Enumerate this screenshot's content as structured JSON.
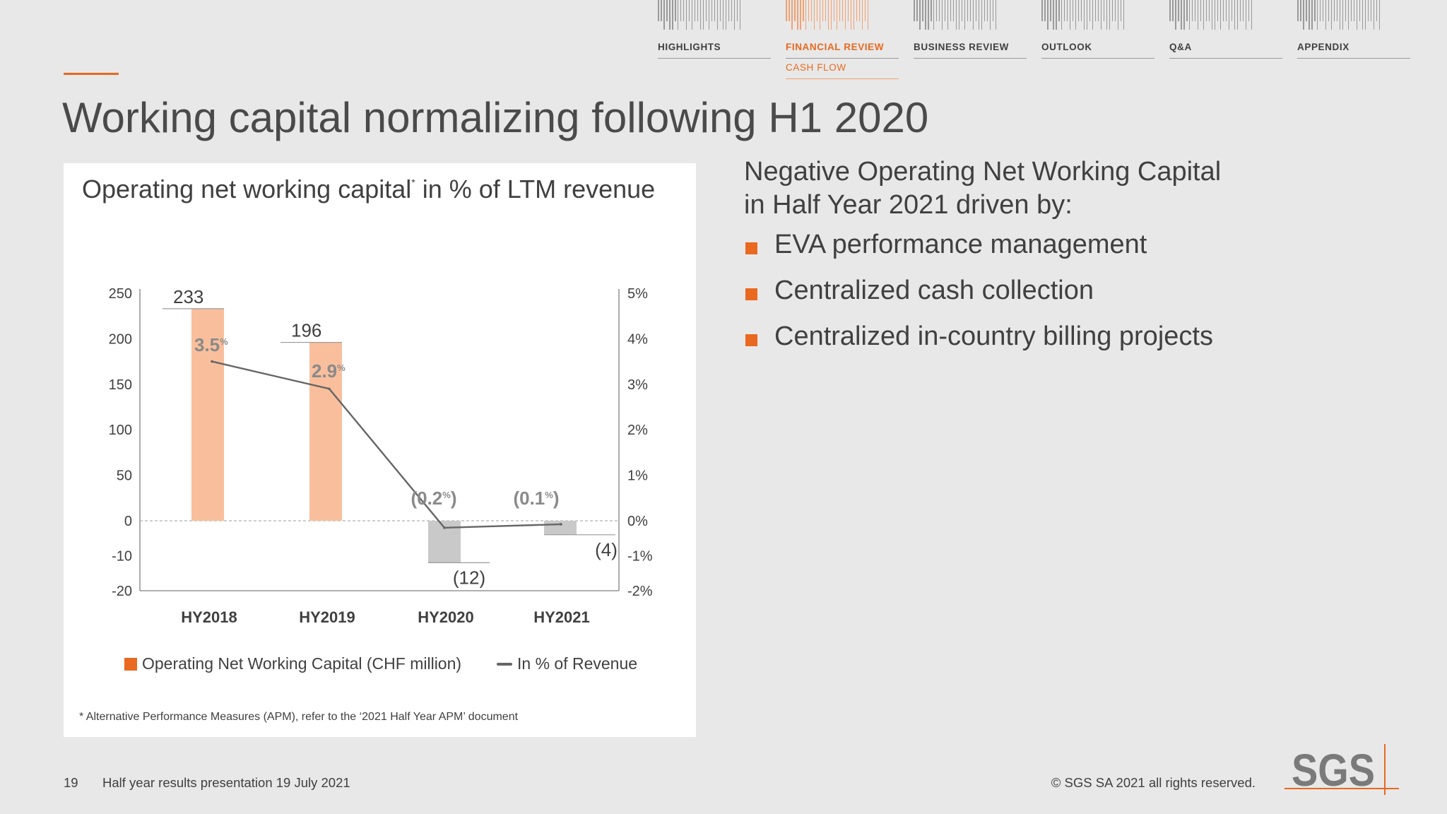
{
  "nav": {
    "items": [
      {
        "label": "HIGHLIGHTS",
        "active": false
      },
      {
        "label": "FINANCIAL REVIEW",
        "active": true,
        "sub": "CASH FLOW"
      },
      {
        "label": "BUSINESS REVIEW",
        "active": false
      },
      {
        "label": "OUTLOOK",
        "active": false
      },
      {
        "label": "Q&A",
        "active": false
      },
      {
        "label": "APPENDIX",
        "active": false
      }
    ]
  },
  "title": "Working capital normalizing following H1 2020",
  "chart_panel": {
    "title_main": "Operating net working capital",
    "title_mark": "*",
    "title_rest": " in % of LTM revenue",
    "footnote": "*  Alternative Performance Measures (APM), refer to the ‘2021 Half Year APM’ document"
  },
  "chart_data": {
    "type": "bar",
    "title": "Operating net working capital* in % of LTM revenue",
    "categories": [
      "HY2018",
      "HY2019",
      "HY2020",
      "HY2021"
    ],
    "series": [
      {
        "name": "Operating Net Working Capital (CHF million)",
        "type": "bar",
        "axis": "left",
        "values": [
          233,
          196,
          -12,
          -4
        ],
        "labels": [
          "233",
          "196",
          "(12)",
          "(4)"
        ]
      },
      {
        "name": "In % of Revenue",
        "type": "line",
        "axis": "right",
        "values": [
          3.5,
          2.9,
          -0.2,
          -0.1
        ],
        "labels": [
          "3.5",
          "2.9",
          "(0.2",
          "(0.1"
        ],
        "label_unit": "%",
        "label_suffix": [
          "",
          "",
          ")",
          ")"
        ]
      }
    ],
    "y_left": {
      "ticks": [
        "250",
        "200",
        "150",
        "100",
        "50",
        "0",
        "-10",
        "-20"
      ],
      "ylim": [
        -20,
        250
      ]
    },
    "y_right": {
      "ticks": [
        "5%",
        "4%",
        "3%",
        "2%",
        "1%",
        "0%",
        "-1%",
        "-2%"
      ],
      "ylim": [
        -2,
        5
      ]
    },
    "scale": "broken axis: 50 per gridstep above 0, 10 per step below 0",
    "grid": false,
    "legend": "bottom"
  },
  "colors": {
    "accent": "#e8691f",
    "positive_bar": "#f9bf9d",
    "negative_bar": "#c9c9c9",
    "line": "#666666",
    "bar_label_pct": "#8a8a8a"
  },
  "right": {
    "heading_line1": "Negative Operating Net Working Capital",
    "heading_line2": "in Half Year 2021 driven by:",
    "bullets": [
      "EVA performance management",
      "Centralized cash collection",
      "Centralized in-country billing projects"
    ]
  },
  "footer": {
    "page_number": "19",
    "text": "Half year results presentation 19 July 2021",
    "copyright": "© SGS SA 2021 all rights reserved.",
    "logo_text": "SGS"
  }
}
